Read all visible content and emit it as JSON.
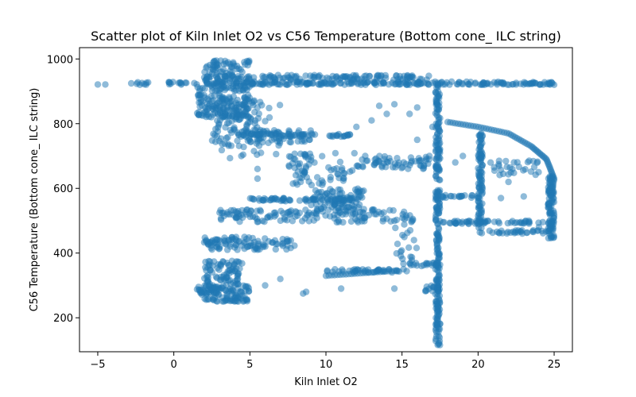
{
  "chart_data": {
    "type": "scatter",
    "title": "Scatter plot of Kiln Inlet O2 vs C56 Temperature (Bottom cone_ ILC string)",
    "xlabel": "Kiln Inlet O2",
    "ylabel": "C56 Temperature (Bottom cone_ ILC string)",
    "xlim": [
      -6.2,
      26.2
    ],
    "ylim": [
      95,
      1035
    ],
    "x_ticks": [
      -5,
      0,
      5,
      10,
      15,
      20,
      25
    ],
    "y_ticks": [
      200,
      400,
      600,
      800,
      1000
    ],
    "grid": false,
    "marker_color": "#1f77b4",
    "marker_alpha": 0.5,
    "segments": [
      {
        "x": [
          -2.8,
          25
        ],
        "y": [
          920,
          930
        ],
        "n": 260
      },
      {
        "x": [
          2,
          17
        ],
        "y": [
          935,
          950
        ],
        "n": 120
      },
      {
        "x": [
          2,
          5
        ],
        "y": [
          945,
          995
        ],
        "n": 60
      },
      {
        "x": [
          1.5,
          5
        ],
        "y": [
          820,
          940
        ],
        "n": 180
      },
      {
        "x": [
          2.5,
          6
        ],
        "y": [
          730,
          880
        ],
        "n": 80
      },
      {
        "x": [
          3,
          7
        ],
        "y": [
          690,
          860
        ],
        "n": 50
      },
      {
        "x": [
          3.5,
          9
        ],
        "y": [
          740,
          780
        ],
        "n": 60
      },
      {
        "x": [
          5,
          12
        ],
        "y": [
          760,
          770
        ],
        "n": 50
      },
      {
        "x": [
          7.5,
          12
        ],
        "y": [
          610,
          710
        ],
        "n": 70
      },
      {
        "x": [
          9,
          12.5
        ],
        "y": [
          530,
          600
        ],
        "n": 80
      },
      {
        "x": [
          3,
          16
        ],
        "y": [
          495,
          535
        ],
        "n": 150
      },
      {
        "x": [
          5,
          12
        ],
        "y": [
          560,
          570
        ],
        "n": 70
      },
      {
        "x": [
          2,
          8
        ],
        "y": [
          410,
          450
        ],
        "n": 100
      },
      {
        "x": [
          2,
          5
        ],
        "y": [
          250,
          300
        ],
        "n": 90
      },
      {
        "x": [
          2,
          4.5
        ],
        "y": [
          300,
          380
        ],
        "n": 80
      },
      {
        "x": [
          1.5,
          3
        ],
        "y": [
          270,
          300
        ],
        "n": 30
      },
      {
        "x": [
          17.2,
          17.5
        ],
        "y": [
          115,
          930
        ],
        "n": 260
      },
      {
        "x": [
          20,
          20.3
        ],
        "y": [
          460,
          780
        ],
        "n": 100
      },
      {
        "x": [
          24.6,
          25
        ],
        "y": [
          440,
          640
        ],
        "n": 100
      },
      {
        "x": [
          10,
          15.5
        ],
        "y": [
          340,
          350
        ],
        "n": 40
      },
      {
        "x": [
          14.5,
          16
        ],
        "y": [
          360,
          500
        ],
        "n": 20
      },
      {
        "x": [
          15.5,
          17.5
        ],
        "y": [
          360,
          370
        ],
        "n": 20
      },
      {
        "x": [
          16.5,
          17.5
        ],
        "y": [
          280,
          300
        ],
        "n": 15
      },
      {
        "x": [
          12,
          17
        ],
        "y": [
          660,
          700
        ],
        "n": 60
      },
      {
        "x": [
          17.5,
          25
        ],
        "y": [
          490,
          500
        ],
        "n": 60
      },
      {
        "x": [
          17.5,
          20
        ],
        "y": [
          570,
          580
        ],
        "n": 20
      },
      {
        "x": [
          20.5,
          24.5
        ],
        "y": [
          460,
          470
        ],
        "n": 30
      },
      {
        "x": [
          20.5,
          24
        ],
        "y": [
          640,
          690
        ],
        "n": 30
      }
    ],
    "curves": [
      {
        "x": [
          18,
          20,
          22,
          23.5,
          24.5,
          25
        ],
        "y": [
          805,
          790,
          770,
          730,
          690,
          630
        ],
        "n": 60
      },
      {
        "x": [
          10,
          11.5,
          13,
          14.5
        ],
        "y": [
          330,
          335,
          340,
          345
        ],
        "n": 25
      }
    ]
  }
}
